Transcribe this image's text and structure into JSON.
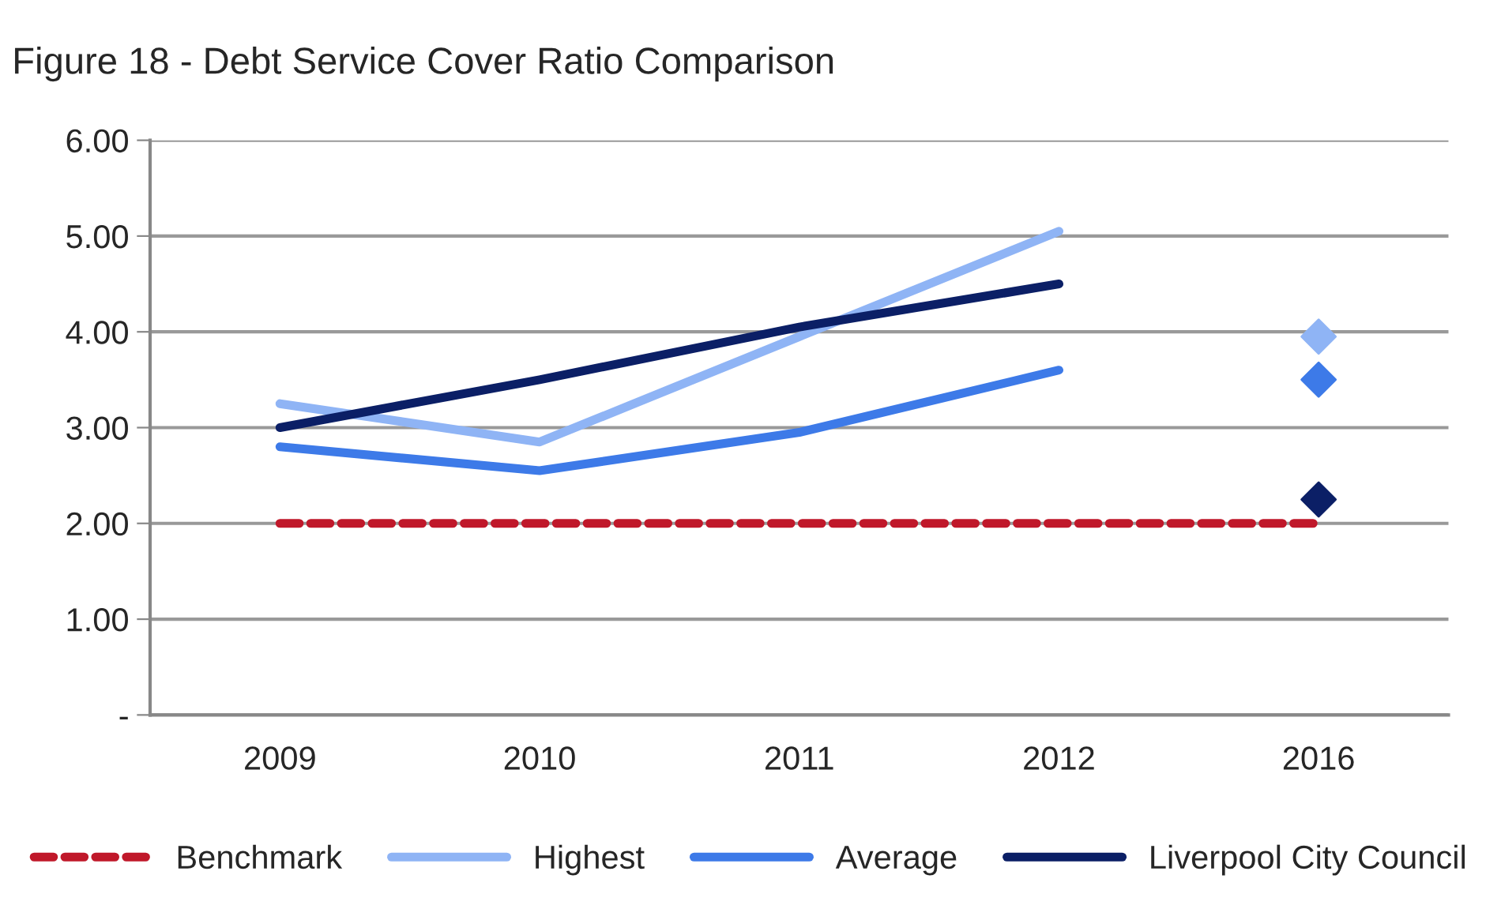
{
  "chart_data": {
    "type": "line",
    "title": "Figure 18 - Debt Service Cover Ratio Comparison",
    "categories": [
      "2009",
      "2010",
      "2011",
      "2012",
      "2016"
    ],
    "series": [
      {
        "name": "Benchmark",
        "color": "#c0182a",
        "line_style": "dashed",
        "values": [
          2.0,
          2.0,
          2.0,
          2.0,
          2.0
        ]
      },
      {
        "name": "Highest",
        "color": "#8fb4f5",
        "values": [
          3.25,
          2.85,
          3.95,
          5.05,
          null
        ]
      },
      {
        "name": "Average",
        "color": "#3d7ae8",
        "values": [
          2.8,
          2.55,
          2.95,
          3.6,
          null
        ]
      },
      {
        "name": "Liverpool City Council",
        "color": "#0b1f66",
        "values": [
          3.0,
          3.5,
          4.05,
          4.5,
          null
        ]
      },
      {
        "type": "scatter",
        "marker": "diamond",
        "color": "#8fb4f5",
        "values": [
          null,
          null,
          null,
          null,
          3.95
        ]
      },
      {
        "type": "scatter",
        "marker": "diamond",
        "color": "#3d7ae8",
        "values": [
          null,
          null,
          null,
          null,
          3.5
        ]
      },
      {
        "type": "scatter",
        "marker": "diamond",
        "color": "#0b1f66",
        "values": [
          null,
          null,
          null,
          null,
          2.25
        ]
      }
    ],
    "ylim": [
      0,
      6
    ],
    "yticks": [
      {
        "value": 0,
        "label": "-"
      },
      {
        "value": 1,
        "label": "1.00"
      },
      {
        "value": 2,
        "label": "2.00"
      },
      {
        "value": 3,
        "label": "3.00"
      },
      {
        "value": 4,
        "label": "4.00"
      },
      {
        "value": 5,
        "label": "5.00"
      },
      {
        "value": 6,
        "label": "6.00"
      }
    ],
    "grid": "y",
    "legend": "bottom",
    "marker": "none",
    "line_style": "solid"
  }
}
